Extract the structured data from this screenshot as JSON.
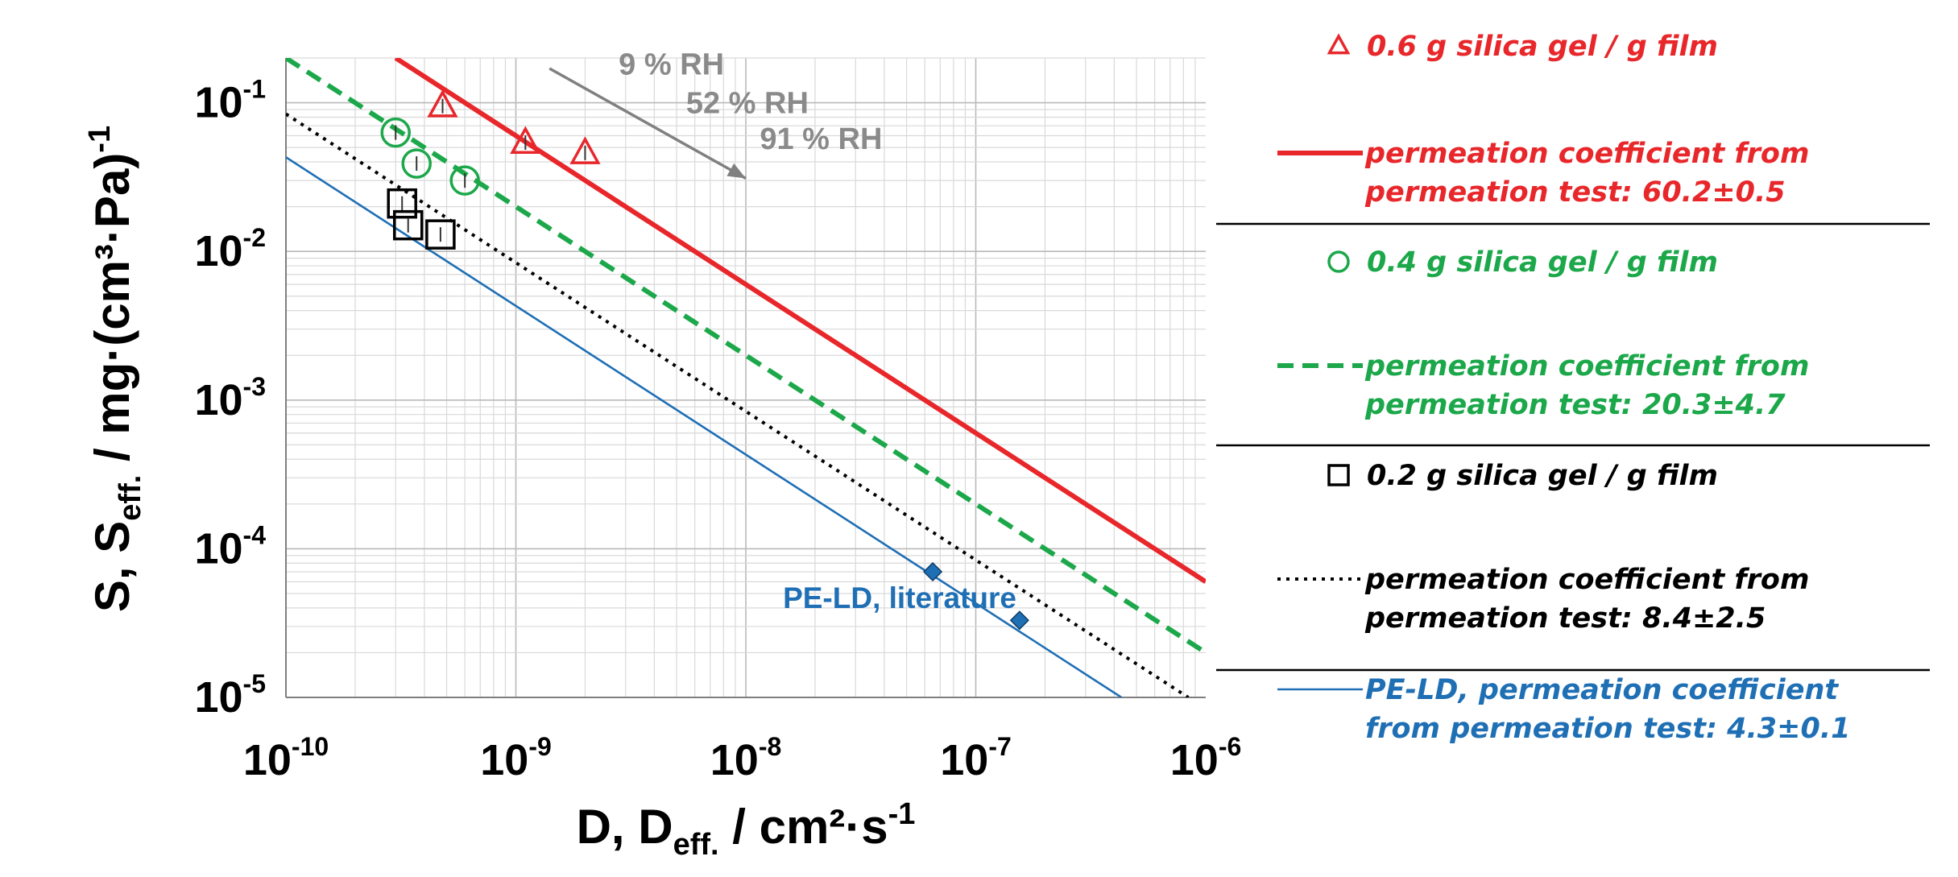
{
  "chart_data": {
    "type": "scatter",
    "x_scale": "log",
    "y_scale": "log",
    "xlim": [
      1e-10,
      1e-06
    ],
    "ylim": [
      1e-05,
      0.2
    ],
    "grid": true,
    "xlabel": {
      "main": "D, D",
      "sub": "eff.",
      "tail": " / cm²·s",
      "sup": "-1"
    },
    "ylabel": {
      "main": "S, S",
      "sub": "eff.",
      "tail": " / mg·(cm³·Pa)",
      "sup": "-1"
    },
    "x_ticks": [
      {
        "value": 1e-10,
        "base": "10",
        "exp": "-10"
      },
      {
        "value": 1e-09,
        "base": "10",
        "exp": "-9"
      },
      {
        "value": 1e-08,
        "base": "10",
        "exp": "-8"
      },
      {
        "value": 1e-07,
        "base": "10",
        "exp": "-7"
      },
      {
        "value": 1e-06,
        "base": "10",
        "exp": "-6"
      }
    ],
    "y_ticks": [
      {
        "value": 1e-05,
        "base": "10",
        "exp": "-5"
      },
      {
        "value": 0.0001,
        "base": "10",
        "exp": "-4"
      },
      {
        "value": 0.001,
        "base": "10",
        "exp": "-3"
      },
      {
        "value": 0.01,
        "base": "10",
        "exp": "-2"
      },
      {
        "value": 0.1,
        "base": "10",
        "exp": "-1"
      }
    ],
    "annotations": [
      {
        "text": "9 % RH",
        "x": 2.8e-09,
        "y": 0.155
      },
      {
        "text": "52 % RH",
        "x": 5.5e-09,
        "y": 0.085
      },
      {
        "text": "91 % RH",
        "x": 1.15e-08,
        "y": 0.049
      },
      {
        "text": "PE-LD, literature",
        "x": 1.45e-08,
        "y": 4e-05
      }
    ],
    "rh_arrow": {
      "from": [
        1.4e-09,
        0.17
      ],
      "to": [
        1e-08,
        0.031
      ]
    },
    "series": [
      {
        "name": "0.6 g silica gel / g film",
        "kind": "scatter",
        "marker": "triangle",
        "color": "#e8272b",
        "points": [
          {
            "x": 4.8e-10,
            "y": 0.095
          },
          {
            "x": 1.1e-09,
            "y": 0.054
          },
          {
            "x": 2e-09,
            "y": 0.046
          }
        ]
      },
      {
        "name": "permeation coefficient from permeation test: 60.2±0.5",
        "kind": "line",
        "style": "solid",
        "color": "#e8272b",
        "points": [
          {
            "x": 3e-10,
            "y": 0.2
          },
          {
            "x": 1e-06,
            "y": 6e-05
          }
        ]
      },
      {
        "name": "0.4 g silica gel / g film",
        "kind": "scatter",
        "marker": "circle",
        "color": "#1ca84a",
        "points": [
          {
            "x": 3e-10,
            "y": 0.063
          },
          {
            "x": 3.7e-10,
            "y": 0.039
          },
          {
            "x": 6e-10,
            "y": 0.03
          }
        ]
      },
      {
        "name": "permeation coefficient from permeation test: 20.3±4.7",
        "kind": "line",
        "style": "dashed",
        "color": "#1ca84a",
        "points": [
          {
            "x": 1e-10,
            "y": 0.2
          },
          {
            "x": 1e-06,
            "y": 2e-05
          }
        ]
      },
      {
        "name": "0.2 g silica gel / g film",
        "kind": "scatter",
        "marker": "square",
        "color": "#000000",
        "points": [
          {
            "x": 3.2e-10,
            "y": 0.021
          },
          {
            "x": 3.4e-10,
            "y": 0.015
          },
          {
            "x": 4.7e-10,
            "y": 0.013
          }
        ]
      },
      {
        "name": "permeation coefficient from permeation test: 8.4±2.5",
        "kind": "line",
        "style": "dotted",
        "color": "#000000",
        "points": [
          {
            "x": 1e-10,
            "y": 0.084
          },
          {
            "x": 8.4e-07,
            "y": 1e-05
          }
        ]
      },
      {
        "name": "PE-LD, literature",
        "kind": "scatter",
        "marker": "diamond",
        "color": "#1f6fb5",
        "points": [
          {
            "x": 6.5e-08,
            "y": 7e-05
          },
          {
            "x": 1.55e-07,
            "y": 3.3e-05
          }
        ]
      },
      {
        "name": "PE-LD, permeation coefficient from permeation test: 4.3±0.1",
        "kind": "line",
        "style": "solid-thin",
        "color": "#1f6fb5",
        "points": [
          {
            "x": 1e-10,
            "y": 0.043
          },
          {
            "x": 4.3e-07,
            "y": 1e-05
          }
        ]
      }
    ],
    "legend": [
      {
        "kind": "marker",
        "marker": "triangle",
        "color": "#e8272b",
        "lines": [
          "0.6 g silica gel / g film"
        ]
      },
      {
        "kind": "line",
        "style": "solid",
        "color": "#e8272b",
        "lines": [
          "permeation coefficient from",
          "permeation test: 60.2±0.5"
        ]
      },
      {
        "kind": "marker",
        "marker": "circle",
        "color": "#1ca84a",
        "lines": [
          "0.4 g silica gel / g film"
        ]
      },
      {
        "kind": "line",
        "style": "dashed",
        "color": "#1ca84a",
        "lines": [
          "permeation coefficient from",
          "permeation test: 20.3±4.7"
        ]
      },
      {
        "kind": "marker",
        "marker": "square",
        "color": "#000000",
        "lines": [
          "0.2 g silica gel / g film"
        ]
      },
      {
        "kind": "line",
        "style": "dotted",
        "color": "#000000",
        "lines": [
          "permeation coefficient from",
          "permeation test: 8.4±2.5"
        ]
      },
      {
        "kind": "line",
        "style": "solid-thin",
        "color": "#1f6fb5",
        "lines": [
          "PE-LD, permeation coefficient",
          "from permeation test: 4.3±0.1"
        ]
      }
    ]
  }
}
